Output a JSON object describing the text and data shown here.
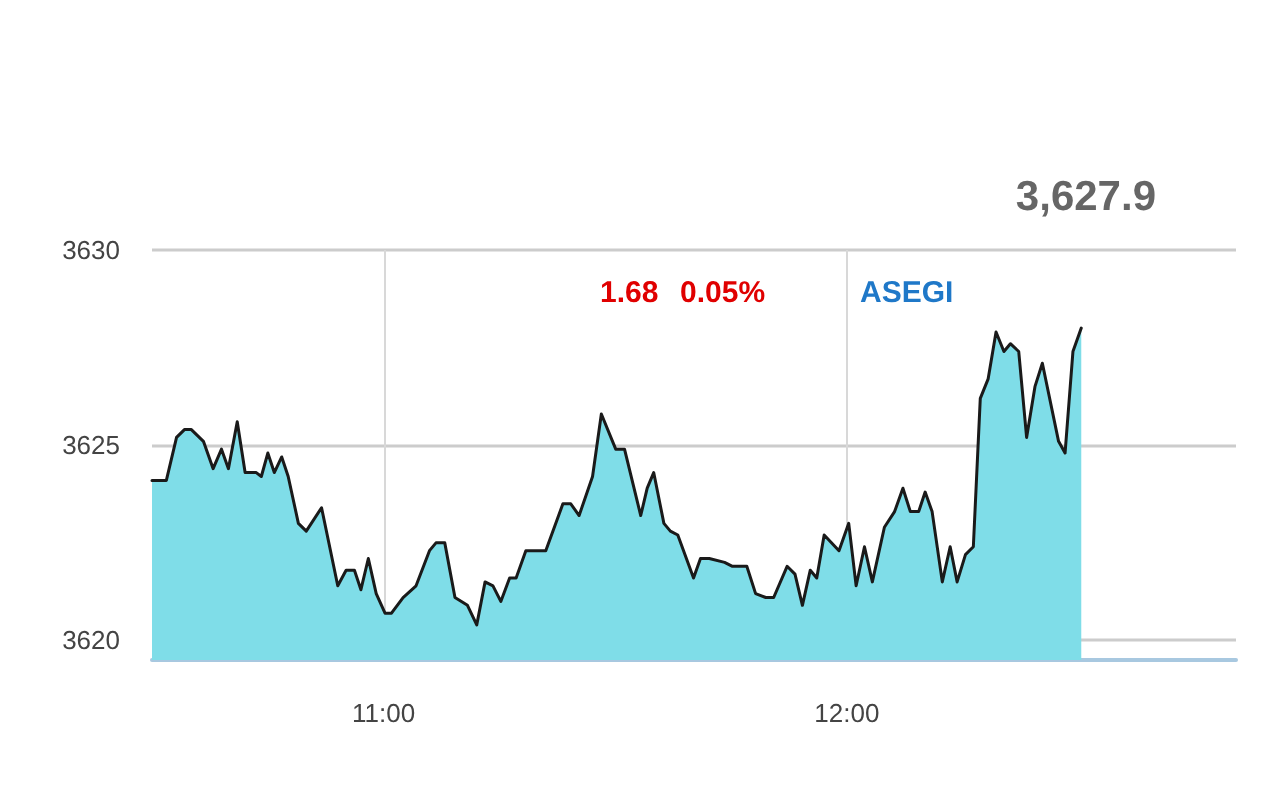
{
  "chart_data": {
    "type": "area",
    "title": "3,627.9",
    "annotations": [
      "1.68",
      "0.05%",
      "ASEGI"
    ],
    "x": [
      10.5,
      10.531,
      10.553,
      10.57,
      10.585,
      10.611,
      10.632,
      10.65,
      10.665,
      10.684,
      10.701,
      10.725,
      10.736,
      10.75,
      10.764,
      10.78,
      10.794,
      10.816,
      10.833,
      10.866,
      10.901,
      10.919,
      10.937,
      10.951,
      10.967,
      10.984,
      11.003,
      11.017,
      11.042,
      11.07,
      11.099,
      11.113,
      11.132,
      11.154,
      11.181,
      11.201,
      11.219,
      11.236,
      11.253,
      11.272,
      11.286,
      11.307,
      11.332,
      11.35,
      11.387,
      11.404,
      11.422,
      11.451,
      11.47,
      11.501,
      11.52,
      11.555,
      11.569,
      11.583,
      11.605,
      11.619,
      11.635,
      11.669,
      11.684,
      11.703,
      11.736,
      11.753,
      11.784,
      11.803,
      11.825,
      11.842,
      11.871,
      11.888,
      11.904,
      11.921,
      11.935,
      11.951,
      11.983,
      12.004,
      12.02,
      12.038,
      12.055,
      12.081,
      12.103,
      12.121,
      12.137,
      12.155,
      12.169,
      12.184,
      12.206,
      12.223,
      12.238,
      12.256,
      12.273,
      12.288,
      12.305,
      12.322,
      12.339,
      12.353,
      12.371,
      12.388,
      12.406,
      12.422,
      12.457,
      12.471,
      12.488,
      12.506
    ],
    "series": [
      {
        "color": "#7fdde8",
        "values": [
          3624.1,
          3624.1,
          3625.2,
          3625.4,
          3625.4,
          3625.1,
          3624.4,
          3624.9,
          3624.4,
          3625.6,
          3624.3,
          3624.3,
          3624.2,
          3624.8,
          3624.3,
          3624.7,
          3624.2,
          3623.0,
          3622.8,
          3623.4,
          3621.4,
          3621.8,
          3621.8,
          3621.3,
          3622.1,
          3621.2,
          3620.7,
          3620.7,
          3621.1,
          3621.4,
          3622.3,
          3622.5,
          3622.5,
          3621.1,
          3620.9,
          3620.4,
          3621.5,
          3621.4,
          3621.0,
          3621.6,
          3621.6,
          3622.3,
          3622.3,
          3622.3,
          3623.5,
          3623.5,
          3623.2,
          3624.2,
          3625.8,
          3624.9,
          3624.9,
          3623.2,
          3623.9,
          3624.3,
          3623.0,
          3622.8,
          3622.7,
          3621.6,
          3622.1,
          3622.1,
          3622.0,
          3621.9,
          3621.9,
          3621.2,
          3621.1,
          3621.1,
          3621.9,
          3621.7,
          3620.9,
          3621.8,
          3621.6,
          3622.7,
          3622.3,
          3623.0,
          3621.4,
          3622.4,
          3621.5,
          3622.9,
          3623.3,
          3623.9,
          3623.3,
          3623.3,
          3623.8,
          3623.3,
          3621.5,
          3622.4,
          3621.5,
          3622.2,
          3622.4,
          3626.2,
          3626.7,
          3627.9,
          3627.4,
          3627.6,
          3627.4,
          3625.2,
          3626.5,
          3627.1,
          3625.1,
          3624.8,
          3627.4,
          3628.0
        ]
      }
    ],
    "xlim": [
      10.5,
      12.84
    ],
    "xticks": [
      {
        "value": 11,
        "label": "11:00"
      },
      {
        "value": 12,
        "label": "12:00"
      }
    ],
    "ylim": [
      3619.5,
      3630
    ],
    "yticks": [
      3620,
      3625,
      3630
    ],
    "grid": true,
    "marker": "none",
    "line_style": "solid"
  }
}
